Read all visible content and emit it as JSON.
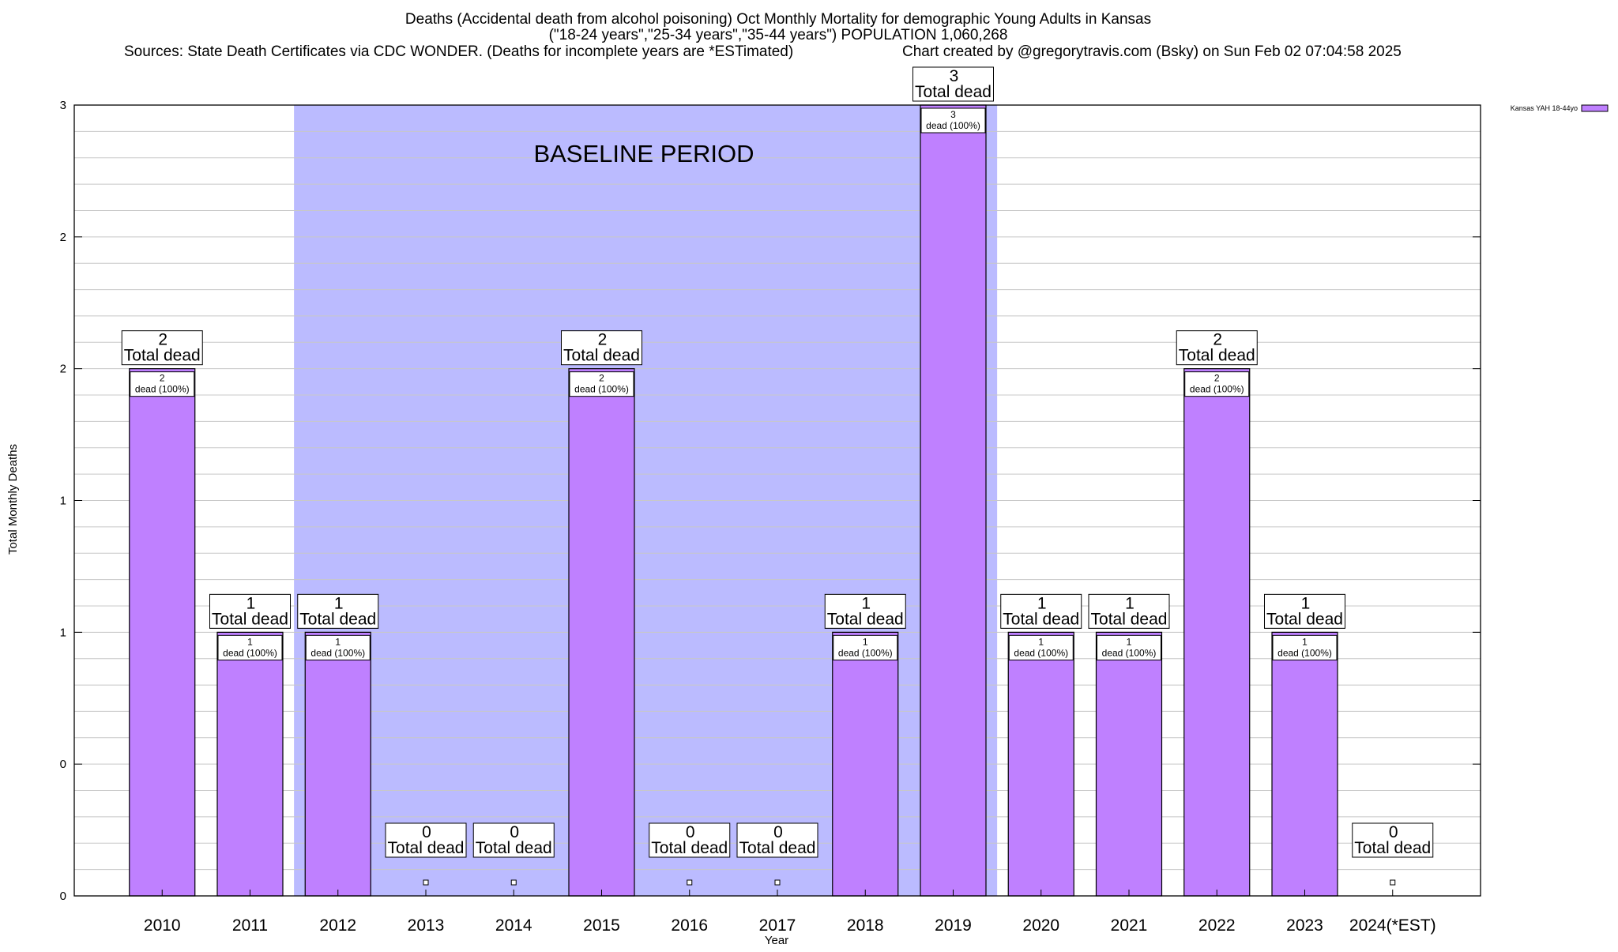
{
  "header": {
    "title_line1": "Deaths (Accidental death from alcohol poisoning) Oct Monthly Mortality for demographic Young Adults in Kansas",
    "title_line2": "(\"18-24 years\",\"25-34 years\",\"35-44 years\") POPULATION 1,060,268",
    "sources": "Sources: State Death Certificates via CDC WONDER. (Deaths for incomplete years are *ESTimated)",
    "credit": "Chart created by @gregorytravis.com (Bsky) on Sun Feb 02 07:04:58 2025"
  },
  "chart_data": {
    "type": "bar",
    "xlabel": "Year",
    "ylabel": "Total Monthly Deaths",
    "categories": [
      "2010",
      "2011",
      "2012",
      "2013",
      "2014",
      "2015",
      "2016",
      "2017",
      "2018",
      "2019",
      "2020",
      "2021",
      "2022",
      "2023",
      "2024(*EST)"
    ],
    "series": [
      {
        "name": "Kansas YAH 18-44yo",
        "values": [
          2,
          1,
          1,
          0,
          0,
          2,
          0,
          0,
          1,
          3,
          1,
          1,
          2,
          1,
          0
        ]
      }
    ],
    "ylim": [
      0,
      3
    ],
    "y_gridline_step": 0.1,
    "y_tick_values": [
      0,
      0.5,
      1,
      1.5,
      2,
      2.5,
      3
    ],
    "y_tick_labels": [
      "0",
      "0",
      "1",
      "1",
      "2",
      "2",
      "3"
    ],
    "total_label_suffix": "Total dead",
    "bar_label_suffix": "dead (100%)",
    "baseline_period": {
      "label": "BASELINE PERIOD",
      "start": "2012",
      "end": "2019"
    },
    "grid": true,
    "legend_position": "top-right",
    "colors": {
      "bar_fill": "#bf80ff",
      "bar_stroke": "#000000",
      "baseline_fill": "#bbbbff",
      "grid": "#c8c8c8",
      "frame": "#000000"
    }
  }
}
